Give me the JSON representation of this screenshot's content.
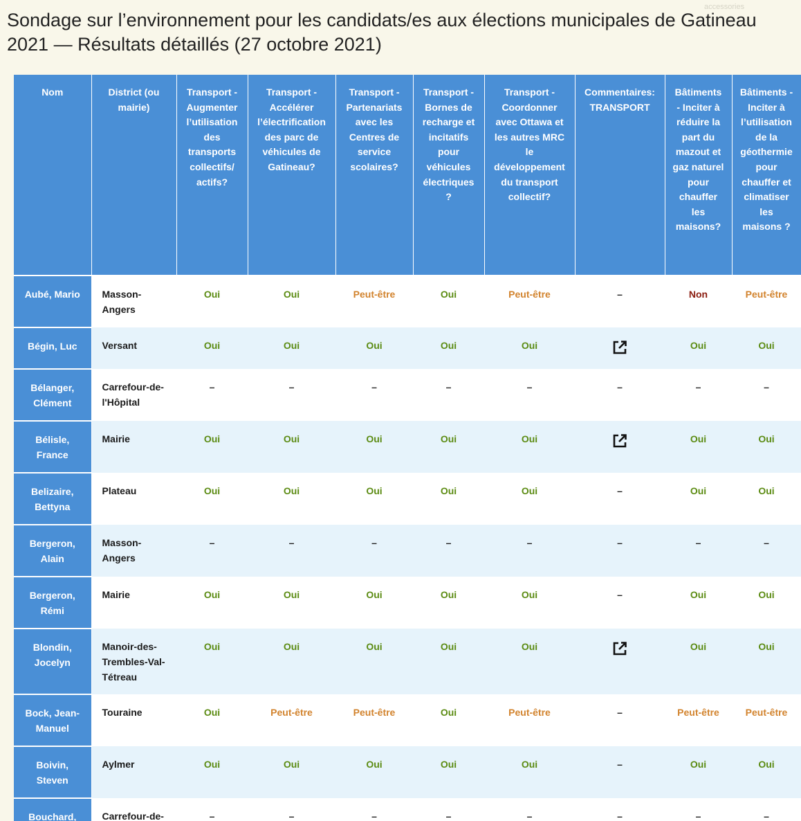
{
  "page": {
    "title": "Sondage sur l’environnement pour les candidats/es aux élections municipales de Gatineau 2021 — Résultats détaillés (27 octobre 2021)",
    "watermark": "accessories"
  },
  "colors": {
    "header_bg": "#4a8fd6",
    "oui": "#5b8b12",
    "peut_etre": "#d2832d",
    "non": "#8b1d10",
    "row_alt_bg": "#e6f3fb"
  },
  "table": {
    "headers": [
      "Nom",
      "District (ou mairie)",
      "Transport - Augmenter l’utilisation des transports collectifs/ actifs?",
      "Transport - Accélérer l’électrification des parc de véhicules de Gatineau?",
      "Transport - Partenariats avec les Centres de service scolaires?",
      "Transport - Bornes de recharge et incitatifs pour véhicules électriques ?",
      "Transport - Coordonner avec Ottawa et les autres MRC le développement du transport collectif?",
      "Commentaires: TRANSPORT",
      "Bâtiments - Inciter à réduire la part du mazout et gaz naturel pour chauffer les maisons?",
      "Bâtiments - Inciter à l’utilisation de la géothermie pour chauffer et climatiser les maisons ?"
    ],
    "rows": [
      {
        "name": "Aubé, Mario",
        "district": "Masson-Angers",
        "values": [
          "Oui",
          "Oui",
          "Peut-être",
          "Oui",
          "Peut-être",
          "–",
          "Non",
          "Peut-être"
        ]
      },
      {
        "name": "Bégin, Luc",
        "district": "Versant",
        "values": [
          "Oui",
          "Oui",
          "Oui",
          "Oui",
          "Oui",
          "link",
          "Oui",
          "Oui"
        ]
      },
      {
        "name": "Bélanger, Clément",
        "district": "Carrefour-de-l'Hôpital",
        "values": [
          "–",
          "–",
          "–",
          "–",
          "–",
          "–",
          "–",
          "–"
        ]
      },
      {
        "name": "Bélisle, France",
        "district": "Mairie",
        "values": [
          "Oui",
          "Oui",
          "Oui",
          "Oui",
          "Oui",
          "link",
          "Oui",
          "Oui"
        ]
      },
      {
        "name": "Belizaire, Bettyna",
        "district": "Plateau",
        "values": [
          "Oui",
          "Oui",
          "Oui",
          "Oui",
          "Oui",
          "–",
          "Oui",
          "Oui"
        ]
      },
      {
        "name": "Bergeron, Alain",
        "district": "Masson-Angers",
        "values": [
          "–",
          "–",
          "–",
          "–",
          "–",
          "–",
          "–",
          "–"
        ]
      },
      {
        "name": "Bergeron, Rémi",
        "district": "Mairie",
        "values": [
          "Oui",
          "Oui",
          "Oui",
          "Oui",
          "Oui",
          "–",
          "Oui",
          "Oui"
        ]
      },
      {
        "name": "Blondin, Jocelyn",
        "district": "Manoir-des-Trembles-Val-Tétreau",
        "values": [
          "Oui",
          "Oui",
          "Oui",
          "Oui",
          "Oui",
          "link",
          "Oui",
          "Oui"
        ]
      },
      {
        "name": "Bock, Jean-Manuel",
        "district": "Touraine",
        "values": [
          "Oui",
          "Peut-être",
          "Peut-être",
          "Oui",
          "Peut-être",
          "–",
          "Peut-être",
          "Peut-être"
        ]
      },
      {
        "name": "Boivin, Steven",
        "district": "Aylmer",
        "values": [
          "Oui",
          "Oui",
          "Oui",
          "Oui",
          "Oui",
          "–",
          "Oui",
          "Oui"
        ]
      },
      {
        "name": "Bouchard,",
        "district": "Carrefour-de-",
        "values": [
          "–",
          "–",
          "–",
          "–",
          "–",
          "–",
          "–",
          "–"
        ]
      }
    ]
  }
}
